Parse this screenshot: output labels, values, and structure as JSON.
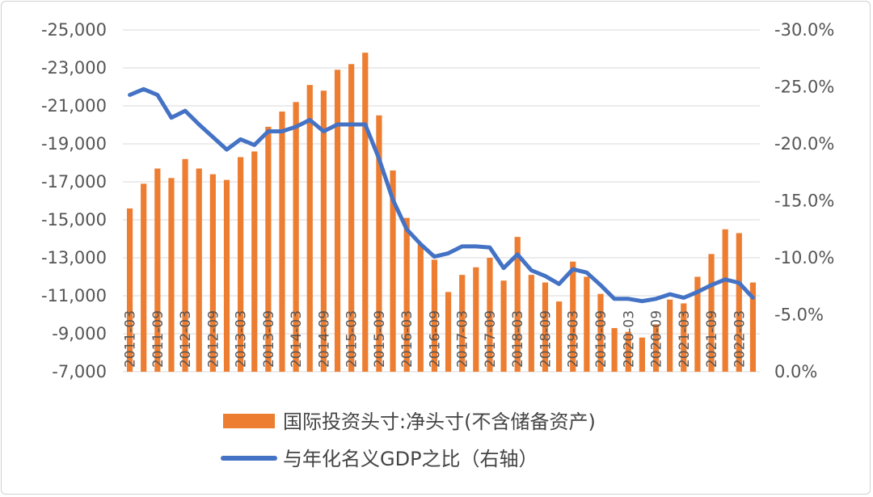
{
  "chart_data": {
    "type": "bar+line",
    "title": "",
    "categories": [
      "2011-03",
      "2011-06",
      "2011-09",
      "2011-12",
      "2012-03",
      "2012-06",
      "2012-09",
      "2012-12",
      "2013-03",
      "2013-06",
      "2013-09",
      "2013-12",
      "2014-03",
      "2014-06",
      "2014-09",
      "2014-12",
      "2015-03",
      "2015-06",
      "2015-09",
      "2015-12",
      "2016-03",
      "2016-06",
      "2016-09",
      "2016-12",
      "2017-03",
      "2017-06",
      "2017-09",
      "2017-12",
      "2018-03",
      "2018-06",
      "2018-09",
      "2018-12",
      "2019-03",
      "2019-06",
      "2019-09",
      "2019-12",
      "2020-03",
      "2020-06",
      "2020-09",
      "2020-12",
      "2021-03",
      "2021-06",
      "2021-09",
      "2021-12",
      "2022-03",
      "2022-06"
    ],
    "x_tick_labels": [
      "2011-03",
      "2011-09",
      "2012-03",
      "2012-09",
      "2013-03",
      "2013-09",
      "2014-03",
      "2014-09",
      "2015-03",
      "2015-09",
      "2016-03",
      "2016-09",
      "2017-03",
      "2017-09",
      "2018-03",
      "2018-09",
      "2019-03",
      "2019-09",
      "2020-03",
      "2020-09",
      "2021-03",
      "2021-09",
      "2022-03"
    ],
    "series": [
      {
        "name": "国际投资头寸:净头寸(不含储备资产)",
        "kind": "bar",
        "axis": "left",
        "color": "#ED7D31",
        "values": [
          -15600,
          -16900,
          -17700,
          -17200,
          -18200,
          -17700,
          -17400,
          -17100,
          -18300,
          -18600,
          -19900,
          -20700,
          -21200,
          -22100,
          -21800,
          -22900,
          -23200,
          -23800,
          -20500,
          -17600,
          -15100,
          -13700,
          -12900,
          -11200,
          -12100,
          -12500,
          -13000,
          -11800,
          -14100,
          -12100,
          -11700,
          -10700,
          -12800,
          -12000,
          -11100,
          -9300,
          -9100,
          -8800,
          -9500,
          -10800,
          -10600,
          -12000,
          -13200,
          -14500,
          -14300,
          -11700
        ]
      },
      {
        "name": "与年化名义GDP之比（右轴）",
        "kind": "line",
        "axis": "right",
        "color": "#4472C4",
        "values": [
          -24.3,
          -24.8,
          -24.3,
          -22.3,
          -22.9,
          -21.7,
          -20.6,
          -19.5,
          -20.4,
          -19.9,
          -21.1,
          -21.1,
          -21.5,
          -22.1,
          -21.1,
          -21.7,
          -21.7,
          -21.7,
          -18.7,
          -15.1,
          -12.5,
          -11.2,
          -10.1,
          -10.4,
          -11.0,
          -11.0,
          -10.9,
          -9.1,
          -10.3,
          -8.9,
          -8.4,
          -7.7,
          -9.0,
          -8.7,
          -7.6,
          -6.4,
          -6.4,
          -6.2,
          -6.4,
          -6.8,
          -6.5,
          -7.0,
          -7.6,
          -8.1,
          -7.8,
          -6.5
        ]
      }
    ],
    "y_left": {
      "ticks": [
        "-25,000",
        "-23,000",
        "-21,000",
        "-19,000",
        "-17,000",
        "-15,000",
        "-13,000",
        "-11,000",
        "-9,000",
        "-7,000"
      ],
      "range": [
        -7000,
        -25000
      ]
    },
    "y_right": {
      "ticks": [
        "-30.0%",
        "-25.0%",
        "-20.0%",
        "-15.0%",
        "-10.0%",
        "-5.0%",
        "0.0%"
      ],
      "range": [
        0,
        -30
      ]
    },
    "grid": true,
    "legend_position": "bottom",
    "legend": [
      {
        "label": "国际投资头寸:净头寸(不含储备资产)",
        "swatch": "bar",
        "color": "#ED7D31"
      },
      {
        "label": "与年化名义GDP之比（右轴）",
        "swatch": "line",
        "color": "#4472C4"
      }
    ]
  }
}
